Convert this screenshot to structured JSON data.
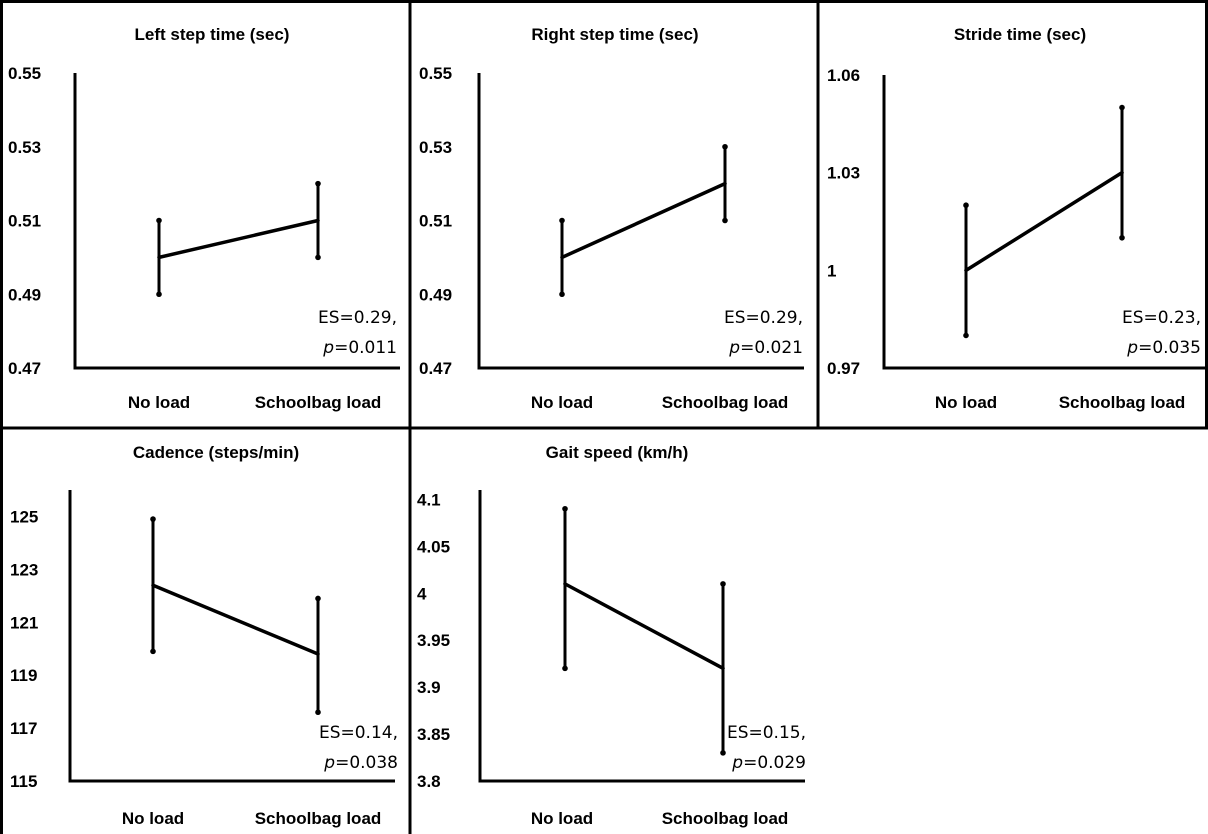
{
  "categories": [
    "No load",
    "Schoolbag load"
  ],
  "chart_data": [
    {
      "type": "line",
      "title": "Left step time (sec)",
      "categories": [
        "No load",
        "Schoolbag load"
      ],
      "yticks": [
        "0.47",
        "0.49",
        "0.51",
        "0.53",
        "0.55"
      ],
      "ylim": [
        0.47,
        0.55
      ],
      "series": [
        {
          "values": [
            0.5,
            0.51
          ],
          "error_low": [
            0.49,
            0.5
          ],
          "error_high": [
            0.51,
            0.52
          ]
        }
      ],
      "es": "ES=0.29,",
      "p_label": "p",
      "p_value": "=0.011"
    },
    {
      "type": "line",
      "title": "Right step time (sec)",
      "categories": [
        "No load",
        "Schoolbag load"
      ],
      "yticks": [
        "0.47",
        "0.49",
        "0.51",
        "0.53",
        "0.55"
      ],
      "ylim": [
        0.47,
        0.55
      ],
      "series": [
        {
          "values": [
            0.5,
            0.52
          ],
          "error_low": [
            0.49,
            0.51
          ],
          "error_high": [
            0.51,
            0.53
          ]
        }
      ],
      "es": "ES=0.29,",
      "p_label": "p",
      "p_value": "=0.021"
    },
    {
      "type": "line",
      "title": "Stride time (sec)",
      "categories": [
        "No load",
        "Schoolbag load"
      ],
      "yticks": [
        "0.97",
        "1",
        "1.03",
        "1.06"
      ],
      "ylim": [
        0.97,
        1.06
      ],
      "series": [
        {
          "values": [
            1.0,
            1.03
          ],
          "error_low": [
            0.98,
            1.01
          ],
          "error_high": [
            1.02,
            1.05
          ]
        }
      ],
      "es": "ES=0.23,",
      "p_label": "p",
      "p_value": "=0.035"
    },
    {
      "type": "line",
      "title": "Cadence (steps/min)",
      "categories": [
        "No load",
        "Schoolbag load"
      ],
      "yticks": [
        "115",
        "117",
        "119",
        "121",
        "123",
        "125"
      ],
      "ylim": [
        115,
        126
      ],
      "series": [
        {
          "values": [
            122.4,
            119.8
          ],
          "error_low": [
            119.9,
            117.6
          ],
          "error_high": [
            124.9,
            121.9
          ]
        }
      ],
      "es": "ES=0.14,",
      "p_label": "p",
      "p_value": "=0.038"
    },
    {
      "type": "line",
      "title": "Gait speed (km/h)",
      "categories": [
        "No load",
        "Schoolbag load"
      ],
      "yticks": [
        "3.8",
        "3.85",
        "3.9",
        "3.95",
        "4",
        "4.05",
        "4.1"
      ],
      "ylim": [
        3.8,
        4.11
      ],
      "series": [
        {
          "values": [
            4.01,
            3.92
          ],
          "error_low": [
            3.92,
            3.83
          ],
          "error_high": [
            4.09,
            4.01
          ]
        }
      ],
      "es": "ES=0.15,",
      "p_label": "p",
      "p_value": "=0.029"
    }
  ]
}
